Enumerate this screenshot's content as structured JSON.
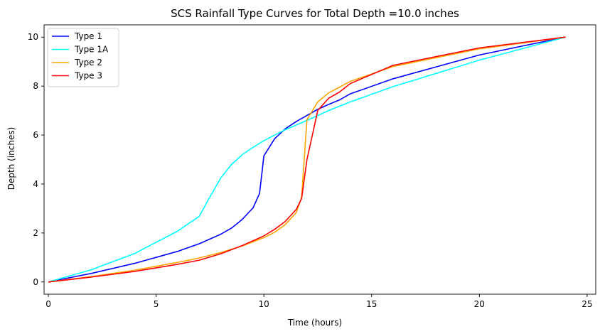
{
  "chart_data": {
    "type": "line",
    "title": "SCS Rainfall Type Curves for Total Depth =10.0 inches",
    "xlabel": "Time (hours)",
    "ylabel": "Depth (inches)",
    "xlim": [
      -0.2,
      25.4
    ],
    "ylim": [
      -0.5,
      10.5
    ],
    "xticks": [
      0,
      5,
      10,
      15,
      20,
      25
    ],
    "yticks": [
      0,
      2,
      4,
      6,
      8,
      10
    ],
    "legend_position": "top-left",
    "series": [
      {
        "name": "Type 1",
        "color": "#0000ff",
        "x": [
          0,
          2,
          4,
          6,
          7,
          8,
          8.5,
          9,
          9.5,
          9.8,
          10,
          10.5,
          11,
          11.5,
          12,
          12.5,
          13,
          13.5,
          14,
          16,
          20,
          24
        ],
        "y": [
          0,
          0.35,
          0.76,
          1.25,
          1.56,
          1.95,
          2.2,
          2.56,
          3.03,
          3.62,
          5.15,
          5.85,
          6.26,
          6.55,
          6.8,
          7.05,
          7.25,
          7.43,
          7.68,
          8.3,
          9.27,
          10
        ]
      },
      {
        "name": "Type 1A",
        "color": "#00ffff",
        "x": [
          0,
          2,
          4,
          6,
          7,
          7.5,
          8,
          8.5,
          9,
          9.5,
          10,
          10.5,
          11,
          12,
          13,
          14,
          16,
          20,
          24
        ],
        "y": [
          0,
          0.5,
          1.16,
          2.08,
          2.68,
          3.48,
          4.25,
          4.8,
          5.2,
          5.5,
          5.77,
          6.0,
          6.22,
          6.6,
          7.0,
          7.35,
          7.98,
          9.06,
          10
        ]
      },
      {
        "name": "Type 2",
        "color": "#ffa500",
        "x": [
          0,
          2,
          4,
          6,
          7,
          8,
          9,
          10,
          10.5,
          11,
          11.5,
          11.75,
          12,
          12.5,
          13,
          13.5,
          14,
          16,
          20,
          24
        ],
        "y": [
          0,
          0.22,
          0.48,
          0.8,
          0.98,
          1.2,
          1.47,
          1.81,
          2.03,
          2.35,
          2.83,
          3.45,
          6.63,
          7.35,
          7.72,
          7.95,
          8.19,
          8.8,
          9.52,
          10
        ]
      },
      {
        "name": "Type 3",
        "color": "#ff0000",
        "x": [
          0,
          2,
          4,
          6,
          7,
          8,
          9,
          10,
          10.5,
          11,
          11.5,
          11.75,
          12,
          12.5,
          13,
          13.5,
          14,
          16,
          20,
          24
        ],
        "y": [
          0,
          0.2,
          0.43,
          0.72,
          0.89,
          1.15,
          1.49,
          1.88,
          2.15,
          2.48,
          2.96,
          3.4,
          5.0,
          7.0,
          7.5,
          7.75,
          8.1,
          8.85,
          9.56,
          10
        ]
      }
    ]
  }
}
